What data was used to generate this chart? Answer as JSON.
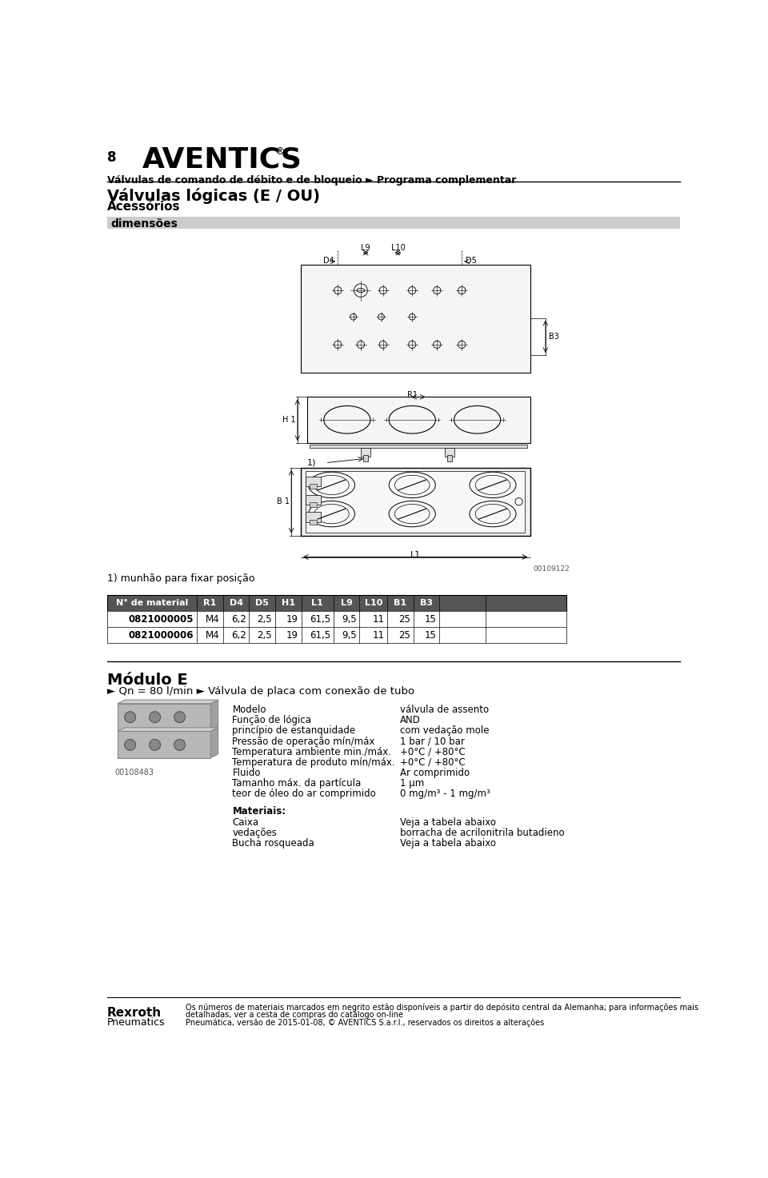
{
  "page_number": "8",
  "logo_text": "AVENTICS",
  "subtitle_line1": "Válvulas de comando de débito e de bloqueio ► Programa complementar",
  "section_title": "Válvulas lógicas (E / OU)",
  "section_subtitle": "Acessórios",
  "section_dimensions": "dimensões",
  "footnote_1": "1) munhão para fixar posição",
  "table_headers": [
    "N° de material",
    "R1",
    "D4",
    "D5",
    "H1",
    "L1",
    "L9",
    "L10",
    "B1",
    "B3",
    "",
    ""
  ],
  "table_rows": [
    [
      "0821000005",
      "M4",
      "6,2",
      "2,5",
      "19",
      "61,5",
      "9,5",
      "11",
      "25",
      "15",
      "",
      ""
    ],
    [
      "0821000006",
      "M4",
      "6,2",
      "2,5",
      "19",
      "61,5",
      "9,5",
      "11",
      "25",
      "15",
      "",
      ""
    ]
  ],
  "module_title": "Módulo E",
  "module_subtitle": "► Qn = 80 l/min ► Válvula de placa com conexão de tubo",
  "spec_labels": [
    "Modelo",
    "Função de lógica",
    "princípio de estanquidade",
    "Pressão de operação mín/máx",
    "Temperatura ambiente min./máx.",
    "Temperatura de produto mín/máx.",
    "Fluido",
    "Tamanho máx. da partícula",
    "teor de óleo do ar comprimido"
  ],
  "spec_values": [
    "válvula de assento",
    "AND",
    "com vedação mole",
    "1 bar / 10 bar",
    "+0°C / +80°C",
    "+0°C / +80°C",
    "Ar comprimido",
    "1 µm",
    "0 mg/m³ - 1 mg/m³"
  ],
  "materials_label": "Materiais:",
  "materials_items": [
    "Caixa",
    "vedações",
    "Bucha rosqueada"
  ],
  "materials_values": [
    "Veja a tabela abaixo",
    "borracha de acrilonitrila butadieno",
    "Veja a tabela abaixo"
  ],
  "image_code_top": "00109122",
  "image_code_bottom": "00108483",
  "footer_text1": "Os números de materiais marcados em negrito estão disponíveis a partir do depósito central da Alemanha; para informações mais",
  "footer_text2": "detalhadas, ver a cesta de compras do catálogo on-line",
  "footer_text3": "Pneumática, versão de 2015-01-08, © AVENTICS S.a.r.l., reservados os direitos a alterações",
  "footer_brand": "Rexroth",
  "footer_brand2": "Pneumatics",
  "bg_color": "#ffffff",
  "table_header_bg": "#555555",
  "table_header_fg": "#ffffff",
  "dim_section_bg": "#cccccc"
}
